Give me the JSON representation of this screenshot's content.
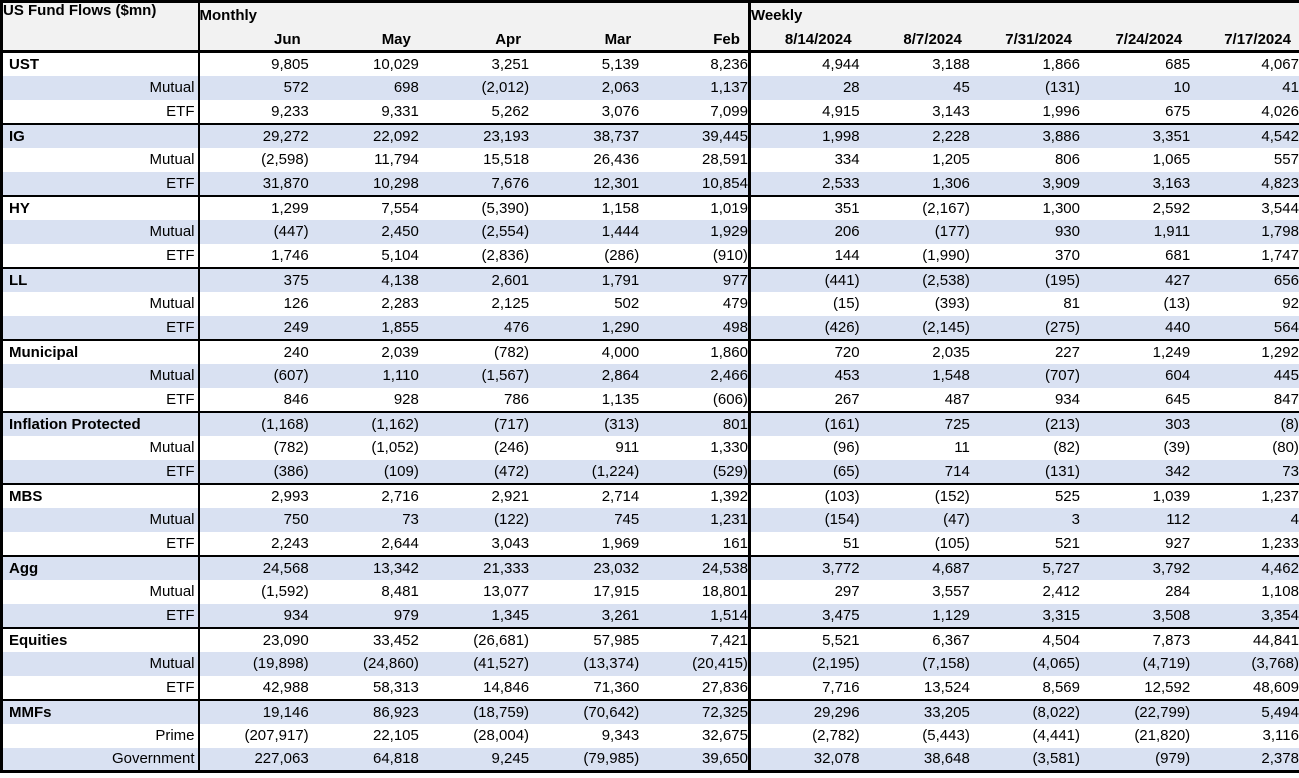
{
  "colors": {
    "row_shade": "#d9e1f2",
    "header_bg": "#f2f2f2",
    "border": "#000000",
    "text": "#000000"
  },
  "table": {
    "title": "US Fund Flows ($mn)",
    "col_groups": [
      {
        "label": "Monthly",
        "columns": [
          "Jun",
          "May",
          "Apr",
          "Mar",
          "Feb"
        ]
      },
      {
        "label": "Weekly",
        "columns": [
          "8/14/2024",
          "8/7/2024",
          "7/31/2024",
          "7/24/2024",
          "7/17/2024"
        ]
      }
    ],
    "groups": [
      {
        "name": "UST",
        "rows": [
          {
            "label": "UST",
            "values": [
              "9,805",
              "10,029",
              "3,251",
              "5,139",
              "8,236",
              "4,944",
              "3,188",
              "1,866",
              "685",
              "4,067"
            ]
          },
          {
            "label": "Mutual",
            "values": [
              "572",
              "698",
              "(2,012)",
              "2,063",
              "1,137",
              "28",
              "45",
              "(131)",
              "10",
              "41"
            ]
          },
          {
            "label": "ETF",
            "values": [
              "9,233",
              "9,331",
              "5,262",
              "3,076",
              "7,099",
              "4,915",
              "3,143",
              "1,996",
              "675",
              "4,026"
            ]
          }
        ]
      },
      {
        "name": "IG",
        "rows": [
          {
            "label": "IG",
            "values": [
              "29,272",
              "22,092",
              "23,193",
              "38,737",
              "39,445",
              "1,998",
              "2,228",
              "3,886",
              "3,351",
              "4,542"
            ]
          },
          {
            "label": "Mutual",
            "values": [
              "(2,598)",
              "11,794",
              "15,518",
              "26,436",
              "28,591",
              "334",
              "1,205",
              "806",
              "1,065",
              "557"
            ]
          },
          {
            "label": "ETF",
            "values": [
              "31,870",
              "10,298",
              "7,676",
              "12,301",
              "10,854",
              "2,533",
              "1,306",
              "3,909",
              "3,163",
              "4,823"
            ]
          }
        ]
      },
      {
        "name": "HY",
        "rows": [
          {
            "label": "HY",
            "values": [
              "1,299",
              "7,554",
              "(5,390)",
              "1,158",
              "1,019",
              "351",
              "(2,167)",
              "1,300",
              "2,592",
              "3,544"
            ]
          },
          {
            "label": "Mutual",
            "values": [
              "(447)",
              "2,450",
              "(2,554)",
              "1,444",
              "1,929",
              "206",
              "(177)",
              "930",
              "1,911",
              "1,798"
            ]
          },
          {
            "label": "ETF",
            "values": [
              "1,746",
              "5,104",
              "(2,836)",
              "(286)",
              "(910)",
              "144",
              "(1,990)",
              "370",
              "681",
              "1,747"
            ]
          }
        ]
      },
      {
        "name": "LL",
        "rows": [
          {
            "label": "LL",
            "values": [
              "375",
              "4,138",
              "2,601",
              "1,791",
              "977",
              "(441)",
              "(2,538)",
              "(195)",
              "427",
              "656"
            ]
          },
          {
            "label": "Mutual",
            "values": [
              "126",
              "2,283",
              "2,125",
              "502",
              "479",
              "(15)",
              "(393)",
              "81",
              "(13)",
              "92"
            ]
          },
          {
            "label": "ETF",
            "values": [
              "249",
              "1,855",
              "476",
              "1,290",
              "498",
              "(426)",
              "(2,145)",
              "(275)",
              "440",
              "564"
            ]
          }
        ]
      },
      {
        "name": "Municipal",
        "rows": [
          {
            "label": "Municipal",
            "values": [
              "240",
              "2,039",
              "(782)",
              "4,000",
              "1,860",
              "720",
              "2,035",
              "227",
              "1,249",
              "1,292"
            ]
          },
          {
            "label": "Mutual",
            "values": [
              "(607)",
              "1,110",
              "(1,567)",
              "2,864",
              "2,466",
              "453",
              "1,548",
              "(707)",
              "604",
              "445"
            ]
          },
          {
            "label": "ETF",
            "values": [
              "846",
              "928",
              "786",
              "1,135",
              "(606)",
              "267",
              "487",
              "934",
              "645",
              "847"
            ]
          }
        ]
      },
      {
        "name": "Inflation Protected",
        "rows": [
          {
            "label": "Inflation Protected",
            "values": [
              "(1,168)",
              "(1,162)",
              "(717)",
              "(313)",
              "801",
              "(161)",
              "725",
              "(213)",
              "303",
              "(8)"
            ]
          },
          {
            "label": "Mutual",
            "values": [
              "(782)",
              "(1,052)",
              "(246)",
              "911",
              "1,330",
              "(96)",
              "11",
              "(82)",
              "(39)",
              "(80)"
            ]
          },
          {
            "label": "ETF",
            "values": [
              "(386)",
              "(109)",
              "(472)",
              "(1,224)",
              "(529)",
              "(65)",
              "714",
              "(131)",
              "342",
              "73"
            ]
          }
        ]
      },
      {
        "name": "MBS",
        "rows": [
          {
            "label": "MBS",
            "values": [
              "2,993",
              "2,716",
              "2,921",
              "2,714",
              "1,392",
              "(103)",
              "(152)",
              "525",
              "1,039",
              "1,237"
            ]
          },
          {
            "label": "Mutual",
            "values": [
              "750",
              "73",
              "(122)",
              "745",
              "1,231",
              "(154)",
              "(47)",
              "3",
              "112",
              "4"
            ]
          },
          {
            "label": "ETF",
            "values": [
              "2,243",
              "2,644",
              "3,043",
              "1,969",
              "161",
              "51",
              "(105)",
              "521",
              "927",
              "1,233"
            ]
          }
        ]
      },
      {
        "name": "Agg",
        "rows": [
          {
            "label": "Agg",
            "values": [
              "24,568",
              "13,342",
              "21,333",
              "23,032",
              "24,538",
              "3,772",
              "4,687",
              "5,727",
              "3,792",
              "4,462"
            ]
          },
          {
            "label": "Mutual",
            "values": [
              "(1,592)",
              "8,481",
              "13,077",
              "17,915",
              "18,801",
              "297",
              "3,557",
              "2,412",
              "284",
              "1,108"
            ]
          },
          {
            "label": "ETF",
            "values": [
              "934",
              "979",
              "1,345",
              "3,261",
              "1,514",
              "3,475",
              "1,129",
              "3,315",
              "3,508",
              "3,354"
            ]
          }
        ]
      },
      {
        "name": "Equities",
        "rows": [
          {
            "label": "Equities",
            "values": [
              "23,090",
              "33,452",
              "(26,681)",
              "57,985",
              "7,421",
              "5,521",
              "6,367",
              "4,504",
              "7,873",
              "44,841"
            ]
          },
          {
            "label": "Mutual",
            "values": [
              "(19,898)",
              "(24,860)",
              "(41,527)",
              "(13,374)",
              "(20,415)",
              "(2,195)",
              "(7,158)",
              "(4,065)",
              "(4,719)",
              "(3,768)"
            ]
          },
          {
            "label": "ETF",
            "values": [
              "42,988",
              "58,313",
              "14,846",
              "71,360",
              "27,836",
              "7,716",
              "13,524",
              "8,569",
              "12,592",
              "48,609"
            ]
          }
        ]
      },
      {
        "name": "MMFs",
        "rows": [
          {
            "label": "MMFs",
            "values": [
              "19,146",
              "86,923",
              "(18,759)",
              "(70,642)",
              "72,325",
              "29,296",
              "33,205",
              "(8,022)",
              "(22,799)",
              "5,494"
            ]
          },
          {
            "label": "Prime",
            "values": [
              "(207,917)",
              "22,105",
              "(28,004)",
              "9,343",
              "32,675",
              "(2,782)",
              "(5,443)",
              "(4,441)",
              "(21,820)",
              "3,116"
            ]
          },
          {
            "label": "Government",
            "values": [
              "227,063",
              "64,818",
              "9,245",
              "(79,985)",
              "39,650",
              "32,078",
              "38,648",
              "(3,581)",
              "(979)",
              "2,378"
            ]
          }
        ]
      }
    ]
  },
  "chart_data": {
    "type": "table",
    "title": "US Fund Flows ($mn)",
    "column_groups": {
      "Monthly": [
        "Jun",
        "May",
        "Apr",
        "Mar",
        "Feb"
      ],
      "Weekly": [
        "8/14/2024",
        "8/7/2024",
        "7/31/2024",
        "7/24/2024",
        "7/17/2024"
      ]
    },
    "columns": [
      "Jun",
      "May",
      "Apr",
      "Mar",
      "Feb",
      "8/14/2024",
      "8/7/2024",
      "7/31/2024",
      "7/24/2024",
      "7/17/2024"
    ],
    "rows": [
      {
        "category": "UST",
        "sub": null,
        "values": [
          9805,
          10029,
          3251,
          5139,
          8236,
          4944,
          3188,
          1866,
          685,
          4067
        ]
      },
      {
        "category": "UST",
        "sub": "Mutual",
        "values": [
          572,
          698,
          -2012,
          2063,
          1137,
          28,
          45,
          -131,
          10,
          41
        ]
      },
      {
        "category": "UST",
        "sub": "ETF",
        "values": [
          9233,
          9331,
          5262,
          3076,
          7099,
          4915,
          3143,
          1996,
          675,
          4026
        ]
      },
      {
        "category": "IG",
        "sub": null,
        "values": [
          29272,
          22092,
          23193,
          38737,
          39445,
          1998,
          2228,
          3886,
          3351,
          4542
        ]
      },
      {
        "category": "IG",
        "sub": "Mutual",
        "values": [
          -2598,
          11794,
          15518,
          26436,
          28591,
          334,
          1205,
          806,
          1065,
          557
        ]
      },
      {
        "category": "IG",
        "sub": "ETF",
        "values": [
          31870,
          10298,
          7676,
          12301,
          10854,
          2533,
          1306,
          3909,
          3163,
          4823
        ]
      },
      {
        "category": "HY",
        "sub": null,
        "values": [
          1299,
          7554,
          -5390,
          1158,
          1019,
          351,
          -2167,
          1300,
          2592,
          3544
        ]
      },
      {
        "category": "HY",
        "sub": "Mutual",
        "values": [
          -447,
          2450,
          -2554,
          1444,
          1929,
          206,
          -177,
          930,
          1911,
          1798
        ]
      },
      {
        "category": "HY",
        "sub": "ETF",
        "values": [
          1746,
          5104,
          -2836,
          -286,
          -910,
          144,
          -1990,
          370,
          681,
          1747
        ]
      },
      {
        "category": "LL",
        "sub": null,
        "values": [
          375,
          4138,
          2601,
          1791,
          977,
          -441,
          -2538,
          -195,
          427,
          656
        ]
      },
      {
        "category": "LL",
        "sub": "Mutual",
        "values": [
          126,
          2283,
          2125,
          502,
          479,
          -15,
          -393,
          81,
          -13,
          92
        ]
      },
      {
        "category": "LL",
        "sub": "ETF",
        "values": [
          249,
          1855,
          476,
          1290,
          498,
          -426,
          -2145,
          -275,
          440,
          564
        ]
      },
      {
        "category": "Municipal",
        "sub": null,
        "values": [
          240,
          2039,
          -782,
          4000,
          1860,
          720,
          2035,
          227,
          1249,
          1292
        ]
      },
      {
        "category": "Municipal",
        "sub": "Mutual",
        "values": [
          -607,
          1110,
          -1567,
          2864,
          2466,
          453,
          1548,
          -707,
          604,
          445
        ]
      },
      {
        "category": "Municipal",
        "sub": "ETF",
        "values": [
          846,
          928,
          786,
          1135,
          -606,
          267,
          487,
          934,
          645,
          847
        ]
      },
      {
        "category": "Inflation Protected",
        "sub": null,
        "values": [
          -1168,
          -1162,
          -717,
          -313,
          801,
          -161,
          725,
          -213,
          303,
          -8
        ]
      },
      {
        "category": "Inflation Protected",
        "sub": "Mutual",
        "values": [
          -782,
          -1052,
          -246,
          911,
          1330,
          -96,
          11,
          -82,
          -39,
          -80
        ]
      },
      {
        "category": "Inflation Protected",
        "sub": "ETF",
        "values": [
          -386,
          -109,
          -472,
          -1224,
          -529,
          -65,
          714,
          -131,
          342,
          73
        ]
      },
      {
        "category": "MBS",
        "sub": null,
        "values": [
          2993,
          2716,
          2921,
          2714,
          1392,
          -103,
          -152,
          525,
          1039,
          1237
        ]
      },
      {
        "category": "MBS",
        "sub": "Mutual",
        "values": [
          750,
          73,
          -122,
          745,
          1231,
          -154,
          -47,
          3,
          112,
          4
        ]
      },
      {
        "category": "MBS",
        "sub": "ETF",
        "values": [
          2243,
          2644,
          3043,
          1969,
          161,
          51,
          -105,
          521,
          927,
          1233
        ]
      },
      {
        "category": "Agg",
        "sub": null,
        "values": [
          24568,
          13342,
          21333,
          23032,
          24538,
          3772,
          4687,
          5727,
          3792,
          4462
        ]
      },
      {
        "category": "Agg",
        "sub": "Mutual",
        "values": [
          -1592,
          8481,
          13077,
          17915,
          18801,
          297,
          3557,
          2412,
          284,
          1108
        ]
      },
      {
        "category": "Agg",
        "sub": "ETF",
        "values": [
          934,
          979,
          1345,
          3261,
          1514,
          3475,
          1129,
          3315,
          3508,
          3354
        ]
      },
      {
        "category": "Equities",
        "sub": null,
        "values": [
          23090,
          33452,
          -26681,
          57985,
          7421,
          5521,
          6367,
          4504,
          7873,
          44841
        ]
      },
      {
        "category": "Equities",
        "sub": "Mutual",
        "values": [
          -19898,
          -24860,
          -41527,
          -13374,
          -20415,
          -2195,
          -7158,
          -4065,
          -4719,
          -3768
        ]
      },
      {
        "category": "Equities",
        "sub": "ETF",
        "values": [
          42988,
          58313,
          14846,
          71360,
          27836,
          7716,
          13524,
          8569,
          12592,
          48609
        ]
      },
      {
        "category": "MMFs",
        "sub": null,
        "values": [
          19146,
          86923,
          -18759,
          -70642,
          72325,
          29296,
          33205,
          -8022,
          -22799,
          5494
        ]
      },
      {
        "category": "MMFs",
        "sub": "Prime",
        "values": [
          -207917,
          22105,
          -28004,
          9343,
          32675,
          -2782,
          -5443,
          -4441,
          -21820,
          3116
        ]
      },
      {
        "category": "MMFs",
        "sub": "Government",
        "values": [
          227063,
          64818,
          9245,
          -79985,
          39650,
          32078,
          38648,
          -3581,
          -979,
          2378
        ]
      }
    ],
    "notes": "Negative values rendered in parentheses; shaded rows alternate #d9e1f2"
  }
}
